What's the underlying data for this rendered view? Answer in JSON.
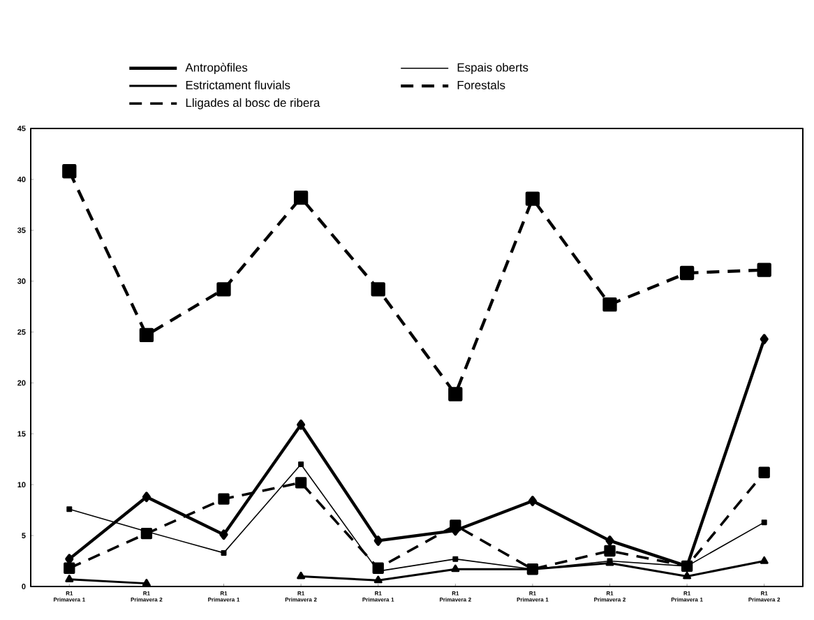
{
  "chart_data": {
    "type": "line",
    "categories": [
      "R1 Primavera 1",
      "R1 Primavera 2",
      "R1 Primavera 1",
      "R1 Primavera 2",
      "R1 Primavera 1",
      "R1 Primavera 2",
      "R1 Primavera 1",
      "R1 Primavera 2",
      "R1 Primavera 1",
      "R1 Primavera 2"
    ],
    "ylim": [
      0,
      45
    ],
    "yticks": [
      0,
      5,
      10,
      15,
      20,
      25,
      30,
      35,
      40,
      45
    ],
    "legend": "top",
    "grid": false,
    "series": [
      {
        "name": "Antropòfiles",
        "color": "#000000",
        "marker": "diamond",
        "line_style": "solid",
        "values": [
          2.7,
          8.8,
          5.1,
          15.9,
          4.5,
          5.5,
          8.4,
          4.5,
          2.0,
          24.3
        ]
      },
      {
        "name": "Espais oberts",
        "color": "#000000",
        "marker": "square",
        "line_style": "solid",
        "values": [
          7.6,
          5.4,
          3.3,
          12.0,
          1.5,
          2.7,
          1.7,
          2.5,
          2.0,
          6.3
        ]
      },
      {
        "name": "Estrictament fluvials",
        "color": "#000000",
        "marker": "triangle",
        "line_style": "solid",
        "values": [
          0.7,
          0.3,
          null,
          1.0,
          0.6,
          1.7,
          1.7,
          2.3,
          1.0,
          2.5
        ]
      },
      {
        "name": "Forestals",
        "color": "#000000",
        "marker": "square",
        "line_style": "dashed",
        "values": [
          40.8,
          24.7,
          29.2,
          38.2,
          29.2,
          18.9,
          38.1,
          27.7,
          30.8,
          31.1
        ]
      },
      {
        "name": "Lligades al bosc de ribera",
        "color": "#000000",
        "marker": "square",
        "line_style": "dashed",
        "values": [
          1.8,
          5.2,
          8.6,
          10.2,
          1.8,
          6.0,
          1.7,
          3.5,
          2.0,
          11.2
        ]
      }
    ]
  }
}
